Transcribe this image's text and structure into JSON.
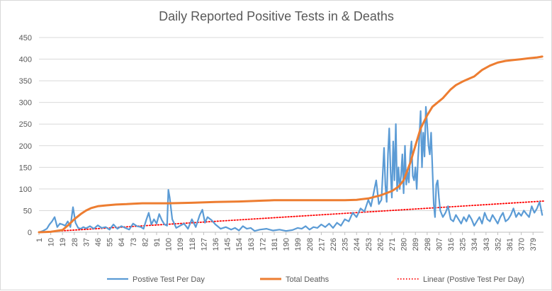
{
  "chart_data": {
    "type": "line",
    "title": "Daily Reported Positive Tests in & Deaths",
    "xlabel": "",
    "ylabel": "",
    "ylim": [
      0,
      450
    ],
    "yticks": [
      0,
      50,
      100,
      150,
      200,
      250,
      300,
      350,
      400,
      450
    ],
    "xlim": [
      1,
      387
    ],
    "xticks": [
      1,
      10,
      19,
      28,
      37,
      46,
      55,
      64,
      73,
      82,
      91,
      100,
      109,
      118,
      127,
      136,
      145,
      154,
      163,
      172,
      181,
      190,
      199,
      208,
      217,
      226,
      235,
      244,
      253,
      262,
      271,
      280,
      289,
      298,
      307,
      316,
      325,
      334,
      343,
      352,
      361,
      370,
      379
    ],
    "grid": "horizontal",
    "legend_position": "bottom",
    "series": [
      {
        "name": "Postive Test Per Day",
        "color": "#5b9bd5",
        "style": "solid",
        "x": [
          1,
          4,
          7,
          9,
          11,
          13,
          15,
          17,
          19,
          21,
          23,
          25,
          27,
          29,
          31,
          33,
          35,
          37,
          40,
          43,
          46,
          49,
          52,
          55,
          58,
          61,
          64,
          67,
          70,
          73,
          76,
          79,
          81,
          83,
          85,
          87,
          89,
          91,
          93,
          95,
          97,
          99,
          100,
          101,
          103,
          106,
          109,
          112,
          115,
          118,
          121,
          124,
          126,
          128,
          130,
          133,
          136,
          140,
          144,
          148,
          151,
          154,
          157,
          160,
          163,
          166,
          170,
          175,
          180,
          185,
          190,
          195,
          199,
          202,
          205,
          208,
          211,
          214,
          217,
          220,
          223,
          226,
          229,
          232,
          235,
          238,
          241,
          244,
          247,
          250,
          253,
          255,
          257,
          259,
          261,
          263,
          265,
          266,
          267,
          268,
          269,
          270,
          271,
          272,
          273,
          274,
          275,
          276,
          277,
          278,
          279,
          280,
          281,
          282,
          283,
          284,
          285,
          286,
          287,
          288,
          289,
          290,
          291,
          292,
          293,
          294,
          295,
          296,
          297,
          298,
          299,
          300,
          301,
          302,
          303,
          304,
          305,
          306,
          307,
          308,
          310,
          312,
          314,
          316,
          318,
          320,
          322,
          324,
          326,
          328,
          330,
          332,
          334,
          336,
          338,
          340,
          342,
          344,
          346,
          348,
          350,
          352,
          354,
          356,
          358,
          360,
          362,
          364,
          366,
          368,
          370,
          372,
          374,
          376,
          378,
          380,
          382,
          384,
          386
        ],
        "y": [
          0,
          3,
          8,
          18,
          25,
          35,
          12,
          20,
          18,
          15,
          25,
          12,
          58,
          22,
          10,
          8,
          12,
          9,
          14,
          8,
          16,
          10,
          12,
          6,
          18,
          8,
          14,
          10,
          6,
          20,
          14,
          12,
          8,
          28,
          45,
          18,
          30,
          20,
          42,
          28,
          18,
          15,
          98,
          80,
          30,
          10,
          15,
          20,
          8,
          30,
          12,
          40,
          52,
          22,
          35,
          28,
          18,
          8,
          12,
          6,
          10,
          4,
          14,
          8,
          10,
          3,
          6,
          8,
          4,
          6,
          3,
          5,
          10,
          8,
          14,
          6,
          12,
          10,
          18,
          12,
          20,
          10,
          22,
          15,
          30,
          25,
          45,
          35,
          55,
          48,
          75,
          60,
          90,
          120,
          65,
          75,
          195,
          110,
          70,
          180,
          240,
          140,
          80,
          210,
          120,
          250,
          95,
          150,
          100,
          130,
          180,
          90,
          200,
          110,
          140,
          115,
          180,
          210,
          130,
          120,
          150,
          100,
          170,
          220,
          280,
          150,
          230,
          175,
          290,
          250,
          200,
          180,
          230,
          150,
          65,
          35,
          110,
          120,
          80,
          50,
          35,
          45,
          60,
          30,
          25,
          40,
          30,
          20,
          35,
          25,
          40,
          30,
          15,
          25,
          35,
          20,
          45,
          30,
          25,
          40,
          30,
          20,
          35,
          45,
          25,
          30,
          40,
          55,
          35,
          45,
          38,
          50,
          42,
          35,
          60,
          45,
          55,
          70,
          40
        ],
        "y_secondary_max": 98
      },
      {
        "name": "Total Deaths",
        "color": "#ed7d31",
        "style": "solid",
        "x": [
          1,
          10,
          19,
          24,
          28,
          33,
          37,
          41,
          46,
          52,
          60,
          68,
          73,
          80,
          100,
          118,
          136,
          154,
          163,
          172,
          181,
          199,
          217,
          235,
          244,
          253,
          262,
          271,
          276,
          280,
          285,
          289,
          293,
          298,
          302,
          306,
          310,
          316,
          320,
          325,
          330,
          334,
          340,
          346,
          352,
          358,
          364,
          370,
          376,
          382,
          386
        ],
        "y": [
          0,
          1,
          5,
          18,
          30,
          42,
          50,
          56,
          60,
          62,
          64,
          65,
          66,
          67,
          67,
          68,
          70,
          71,
          72,
          73,
          74,
          74,
          74,
          74,
          75,
          78,
          85,
          95,
          105,
          120,
          160,
          200,
          240,
          270,
          290,
          300,
          310,
          330,
          340,
          348,
          355,
          360,
          375,
          385,
          392,
          396,
          398,
          400,
          402,
          404,
          406
        ]
      },
      {
        "name": "Linear (Postive Test Per Day)",
        "color": "#ff0000",
        "style": "dotted",
        "x": [
          1,
          387
        ],
        "y": [
          0,
          72
        ]
      }
    ]
  }
}
